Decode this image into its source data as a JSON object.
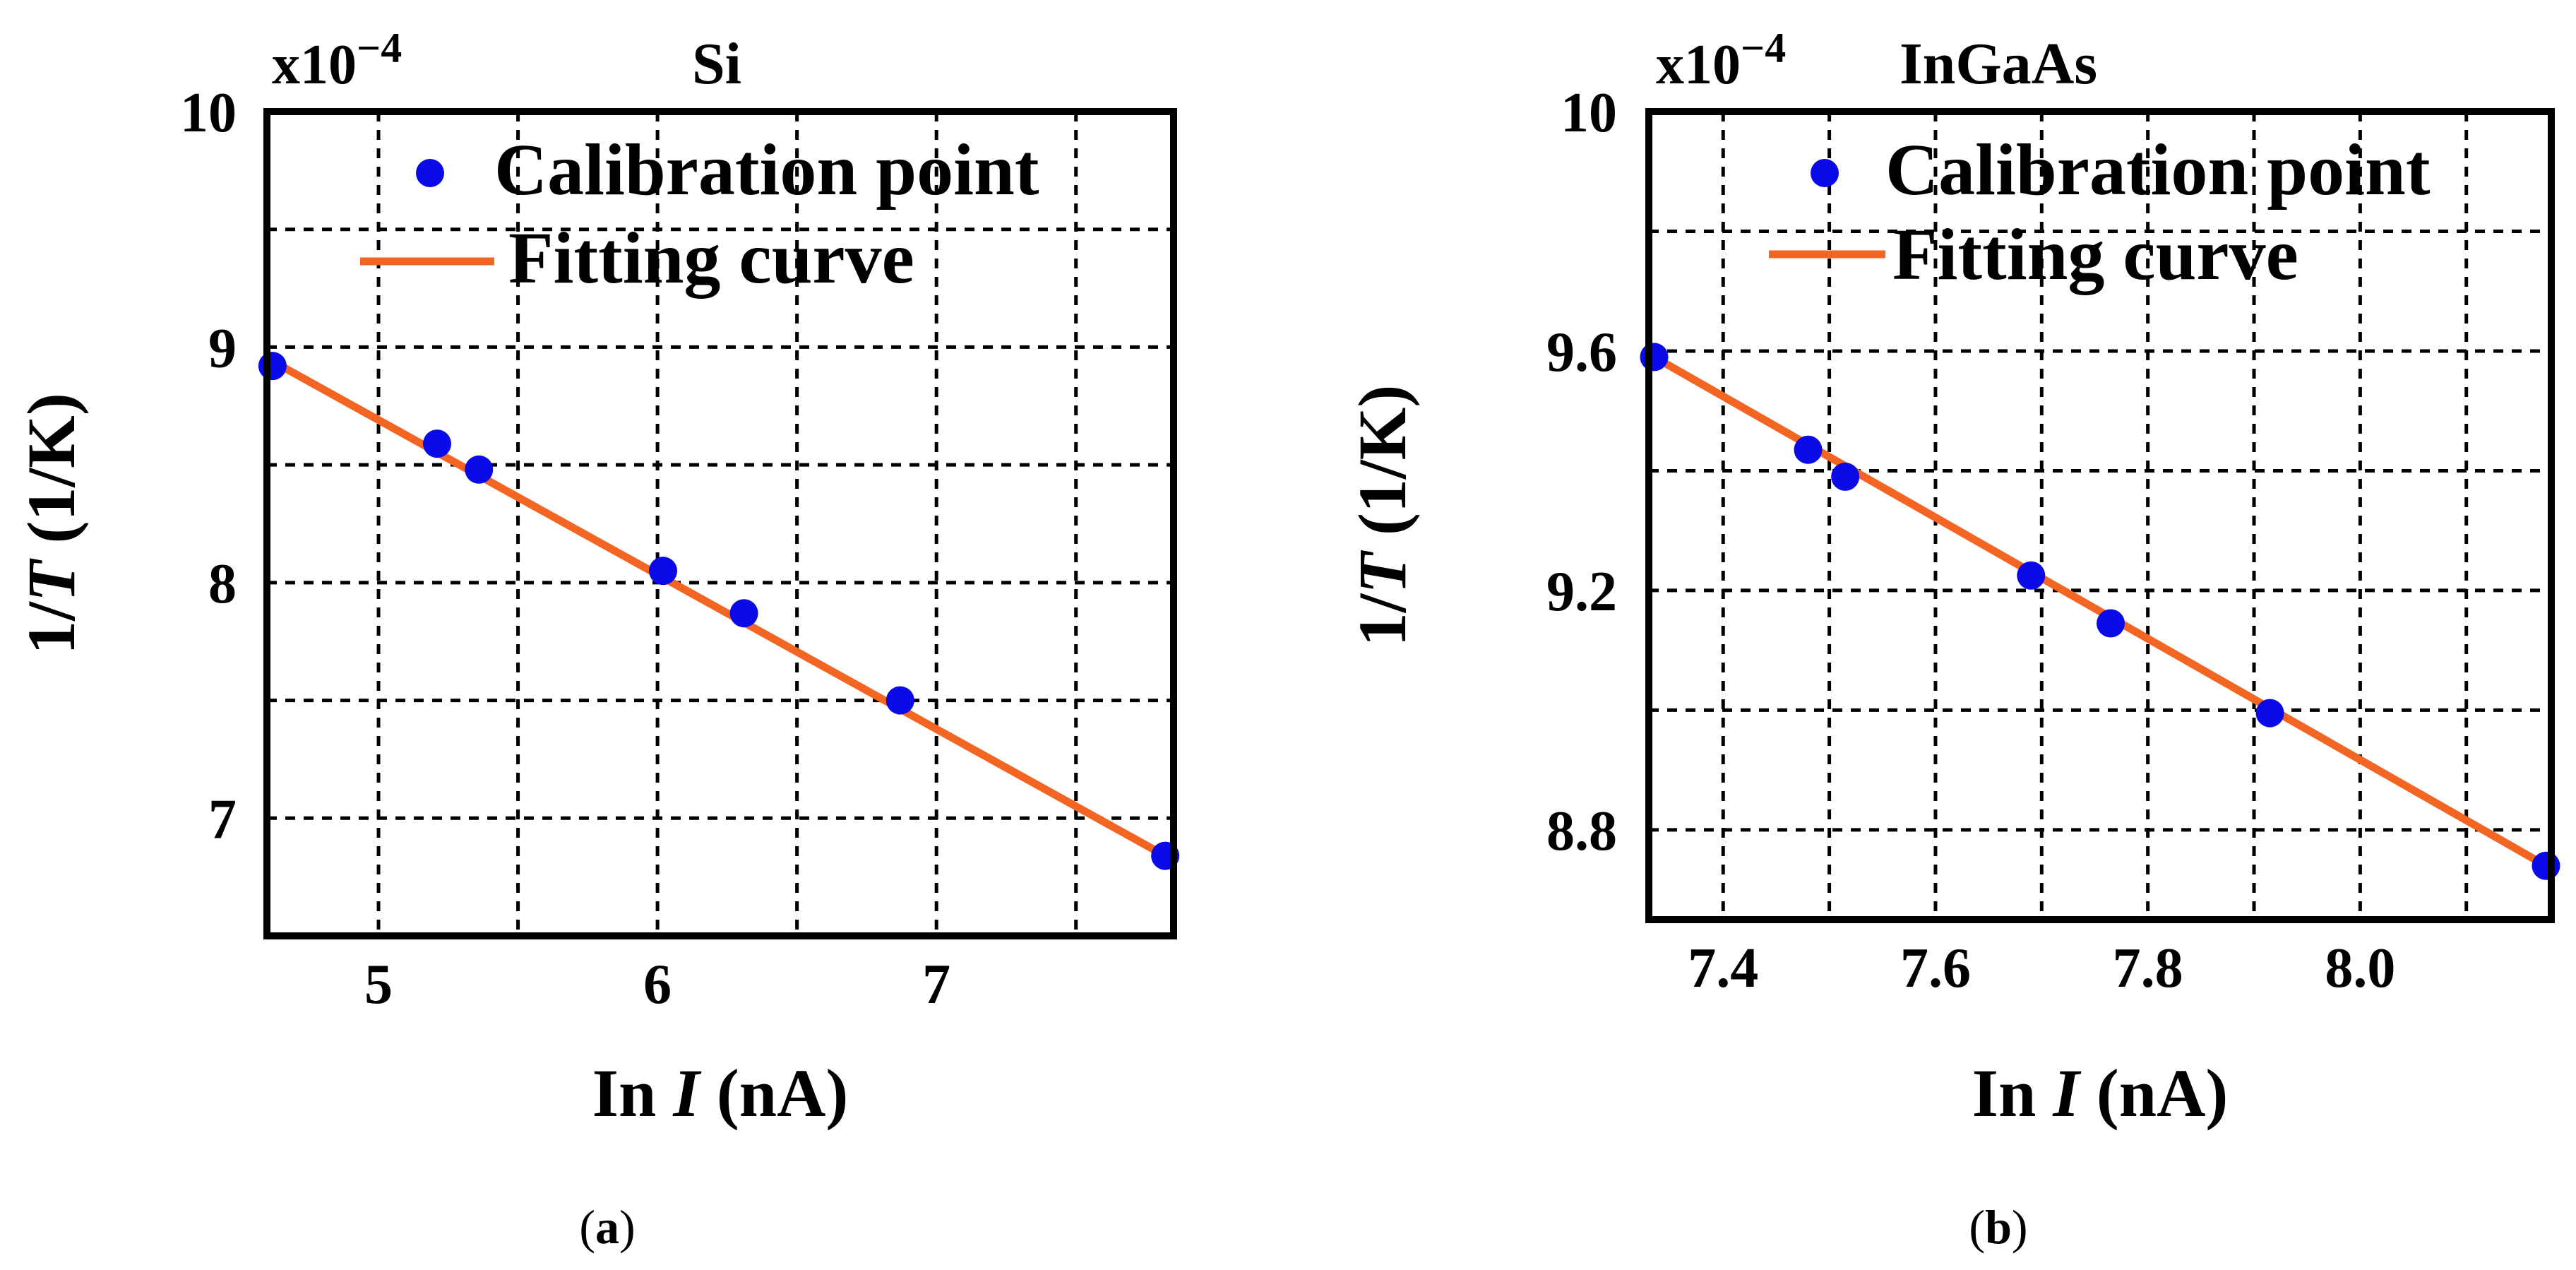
{
  "chart_data": [
    {
      "type": "scatter",
      "panel_label": "(a)",
      "title": "Si",
      "exponent_label": "x10",
      "exponent_power": "−4",
      "xlabel_prefix": "In ",
      "xlabel_var": "I",
      "xlabel_suffix": " (nA)",
      "ylabel_prefix": "1/",
      "ylabel_var": "T",
      "ylabel_suffix": " (1/K)",
      "xlim": [
        4.6,
        7.85
      ],
      "ylim": [
        6.5,
        10
      ],
      "xticks": [
        5,
        6,
        7
      ],
      "xtick_labels": [
        "5",
        "6",
        "7"
      ],
      "yticks": [
        7,
        8,
        9,
        10
      ],
      "ytick_labels": [
        "7",
        "8",
        "9",
        "10"
      ],
      "xgrid": [
        5,
        5.5,
        6,
        6.5,
        7,
        7.5
      ],
      "ygrid": [
        7,
        7.5,
        8,
        8.5,
        9,
        9.5
      ],
      "series": [
        {
          "name": "Calibration point",
          "kind": "points",
          "color": "#0a0ae8",
          "x": [
            4.62,
            5.21,
            5.36,
            6.02,
            6.31,
            6.87,
            7.82
          ],
          "y": [
            8.92,
            8.59,
            8.48,
            8.05,
            7.87,
            7.5,
            6.84
          ]
        },
        {
          "name": "Fitting curve",
          "kind": "line",
          "color": "#f26522",
          "x": [
            4.62,
            7.82
          ],
          "y": [
            8.94,
            6.84
          ]
        }
      ]
    },
    {
      "type": "scatter",
      "panel_label": "(b)",
      "title": "InGaAs",
      "exponent_label": "x10",
      "exponent_power": "−4",
      "xlabel_prefix": "In ",
      "xlabel_var": "I",
      "xlabel_suffix": " (nA)",
      "ylabel_prefix": "1/",
      "ylabel_var": "T",
      "ylabel_suffix": " (1/K)",
      "xlim": [
        7.33,
        8.18
      ],
      "ylim": [
        8.65,
        10.0
      ],
      "xticks": [
        7.4,
        7.6,
        7.8,
        8.0
      ],
      "xtick_labels": [
        "7.4",
        "7.6",
        "7.8",
        "8.0"
      ],
      "yticks": [
        8.8,
        9.2,
        9.6,
        10.0
      ],
      "ytick_labels": [
        "8.8",
        "9.2",
        "9.6",
        "10"
      ],
      "xgrid": [
        7.4,
        7.5,
        7.6,
        7.7,
        7.8,
        7.9,
        8.0,
        8.1
      ],
      "ygrid": [
        8.8,
        9.0,
        9.2,
        9.4,
        9.6,
        9.8
      ],
      "series": [
        {
          "name": "Calibration point",
          "kind": "points",
          "color": "#0a0ae8",
          "x": [
            7.335,
            7.48,
            7.515,
            7.69,
            7.765,
            7.915,
            8.175
          ],
          "y": [
            9.59,
            9.435,
            9.39,
            9.225,
            9.145,
            8.995,
            8.74
          ]
        },
        {
          "name": "Fitting curve",
          "kind": "line",
          "color": "#f26522",
          "x": [
            7.335,
            8.175
          ],
          "y": [
            9.59,
            8.74
          ]
        }
      ]
    }
  ]
}
